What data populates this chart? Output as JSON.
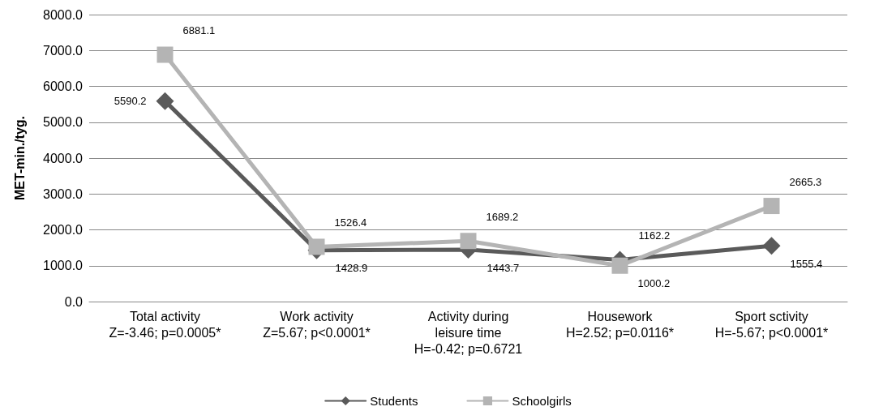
{
  "chart_data": {
    "type": "line",
    "ylabel": "MET-min./tyg.",
    "categories": [
      "Total activity\nZ=-3.46; p=0.0005*",
      "Work activity\nZ=5.67; p<0.0001*",
      "Activity during\nleisure time\nH=-0.42; p=0.6721",
      "Housework\nH=2.52; p=0.0116*",
      "Sport sctivity\nH=-5.67; p<0.0001*"
    ],
    "series": [
      {
        "name": "Students",
        "color": "#5a5a5a",
        "marker": "diamond",
        "values": [
          5590.2,
          1428.9,
          1443.7,
          1162.2,
          1555.4
        ]
      },
      {
        "name": "Schoolgirls",
        "color": "#b4b4b4",
        "marker": "square",
        "values": [
          6881.1,
          1526.4,
          1689.2,
          1000.2,
          2665.3
        ]
      }
    ],
    "ylim": [
      0,
      8000
    ],
    "yticks": [
      {
        "value": 0,
        "label": "0.0"
      },
      {
        "value": 1000,
        "label": "1000.0"
      },
      {
        "value": 2000,
        "label": "2000.0"
      },
      {
        "value": 3000,
        "label": "3000.0"
      },
      {
        "value": 4000,
        "label": "4000.0"
      },
      {
        "value": 5000,
        "label": "5000.0"
      },
      {
        "value": 6000,
        "label": "6000.0"
      },
      {
        "value": 7000,
        "label": "7000.0"
      },
      {
        "value": 8000,
        "label": "8000.0"
      }
    ],
    "grid": "y",
    "legend": "bottom",
    "data_labels": true,
    "line_style": "solid"
  }
}
